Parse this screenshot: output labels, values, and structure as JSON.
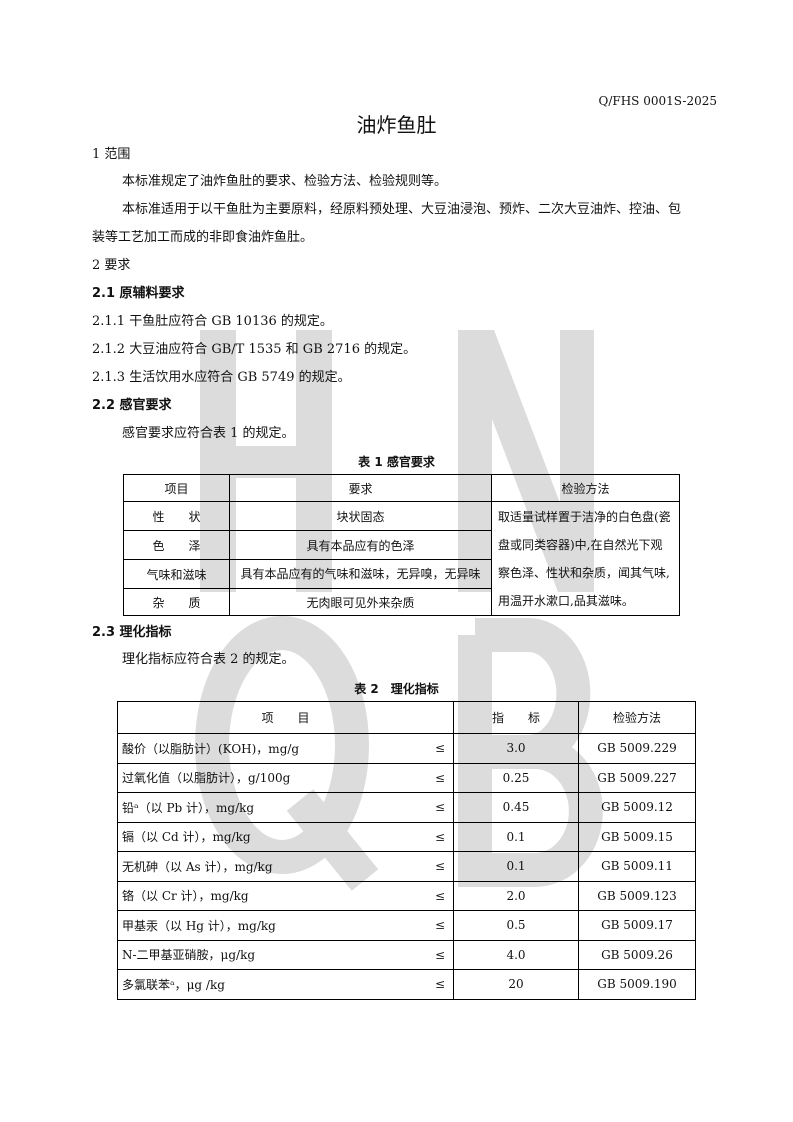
{
  "header": {
    "code": "Q/FHS 0001S-2025",
    "title": "油炸鱼肚"
  },
  "watermark": [
    "H",
    "N",
    "Q",
    "B"
  ],
  "sections": {
    "s1": "1 范围",
    "s1_p1": "本标准规定了油炸鱼肚的要求、检验方法、检验规则等。",
    "s1_p2a": "本标准适用于以干鱼肚为主要原料，经原料预处理、大豆油浸泡、预炸、二次大豆油炸、控油、包",
    "s1_p2b": "装等工艺加工而成的非即食油炸鱼肚。",
    "s2": "2 要求",
    "s21": "2.1 原辅料要求",
    "s211": "2.1.1 干鱼肚应符合 GB 10136 的规定。",
    "s212": "2.1.2 大豆油应符合 GB/T 1535 和 GB 2716 的规定。",
    "s213": "2.1.3 生活饮用水应符合 GB 5749 的规定。",
    "s22": "2.2 感官要求",
    "s22_p": "感官要求应符合表 1 的规定。",
    "s23": "2.3 理化指标",
    "s23_p": "理化指标应符合表 2 的规定。"
  },
  "table1": {
    "caption": "表 1 感官要求",
    "headers": [
      "项目",
      "要求",
      "检验方法"
    ],
    "rows": [
      {
        "item": "性　　状",
        "req": "块状固态"
      },
      {
        "item": "色　　泽",
        "req": "具有本品应有的色泽"
      },
      {
        "item": "气味和滋味",
        "req": "具有本品应有的气味和滋味，无异嗅，无异味"
      },
      {
        "item": "杂　　质",
        "req": "无肉眼可见外来杂质"
      }
    ],
    "method": "取适量试样置于洁净的白色盘(瓷盘或同类容器)中,在自然光下观察色泽、性状和杂质，闻其气味,用温开水漱口,品其滋味。"
  },
  "table2": {
    "caption": "表 2　理化指标",
    "headers": [
      "项　　目",
      "指　　标",
      "检验方法"
    ],
    "le": "≤",
    "rows": [
      {
        "item": "酸价（以脂肪计）(KOH)，mg/g",
        "value": "3.0",
        "method": "GB 5009.229"
      },
      {
        "item": "过氧化值（以脂肪计），g/100g",
        "value": "0.25",
        "method": "GB 5009.227"
      },
      {
        "item": "铅ᵃ（以 Pb 计），mg/kg",
        "value": "0.45",
        "method": "GB 5009.12"
      },
      {
        "item": "镉（以 Cd 计），mg/kg",
        "value": "0.1",
        "method": "GB 5009.15"
      },
      {
        "item": "无机砷（以 As 计），mg/kg",
        "value": "0.1",
        "method": "GB 5009.11"
      },
      {
        "item": "铬（以 Cr 计），mg/kg",
        "value": "2.0",
        "method": "GB 5009.123"
      },
      {
        "item": "甲基汞（以 Hg 计），mg/kg",
        "value": "0.5",
        "method": "GB 5009.17"
      },
      {
        "item": "N-二甲基亚硝胺，μg/kg",
        "value": "4.0",
        "method": "GB 5009.26"
      },
      {
        "item": "多氯联苯ᵃ，μg /kg",
        "value": "20",
        "method": "GB 5009.190"
      }
    ]
  }
}
